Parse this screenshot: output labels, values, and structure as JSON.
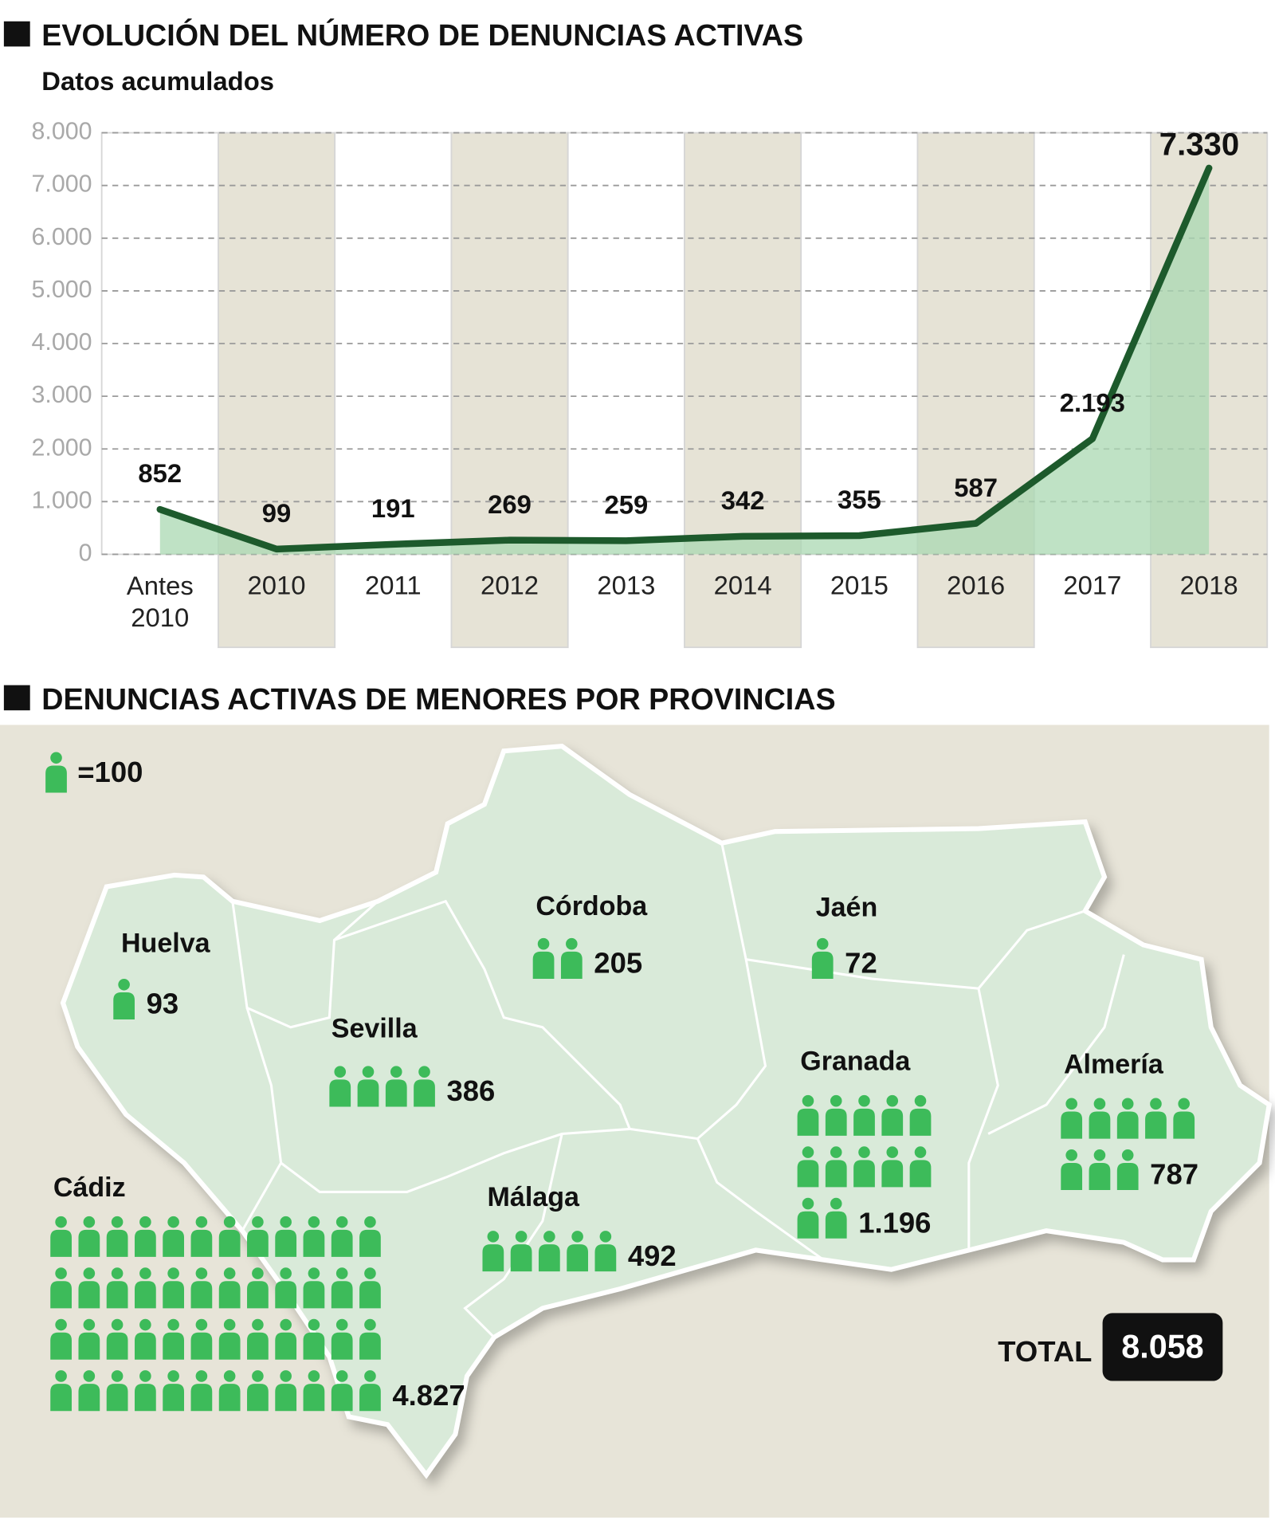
{
  "chart_data": [
    {
      "type": "line",
      "title": "EVOLUCIÓN DEL NÚMERO DE DENUNCIAS ACTIVAS",
      "subtitle": "Datos acumulados",
      "categories": [
        "Antes 2010",
        "2010",
        "2011",
        "2012",
        "2013",
        "2014",
        "2015",
        "2016",
        "2017",
        "2018"
      ],
      "values": [
        852,
        99,
        191,
        269,
        259,
        342,
        355,
        587,
        2193,
        7330
      ],
      "value_labels": [
        "852",
        "99",
        "191",
        "269",
        "259",
        "342",
        "355",
        "587",
        "2.193",
        "7.330"
      ],
      "color": "#1d5a2c",
      "area_color": "#a9d8b2",
      "ylim": [
        0,
        8000
      ],
      "yticks": [
        0,
        {
          "value": 1000,
          "label": "1.000"
        },
        {
          "value": 2000,
          "label": "2.000"
        },
        {
          "value": 3000,
          "label": "3.000"
        },
        {
          "value": 4000,
          "label": "4.000"
        },
        {
          "value": 5000,
          "label": "5.000"
        },
        {
          "value": 6000,
          "label": "6.000"
        },
        {
          "value": 7000,
          "label": "7.000"
        },
        {
          "value": 8000,
          "label": "8.000"
        }
      ],
      "grid": true
    },
    {
      "type": "pictogram",
      "title": "DENUNCIAS ACTIVAS DE MENORES POR PROVINCIAS",
      "unit": {
        "value": 100,
        "label": "=100"
      },
      "categories": [
        "Huelva",
        "Sevilla",
        "Córdoba",
        "Jaén",
        "Granada",
        "Almería",
        "Cádiz",
        "Málaga"
      ],
      "values": [
        93,
        386,
        205,
        72,
        1196,
        787,
        4827,
        492
      ],
      "value_labels": [
        "93",
        "386",
        "205",
        "72",
        "1.196",
        "787",
        "4.827",
        "492"
      ],
      "color": "#3dbb5a",
      "total_text": "TOTAL",
      "total": 8058,
      "total_value_label": "8.058"
    }
  ]
}
